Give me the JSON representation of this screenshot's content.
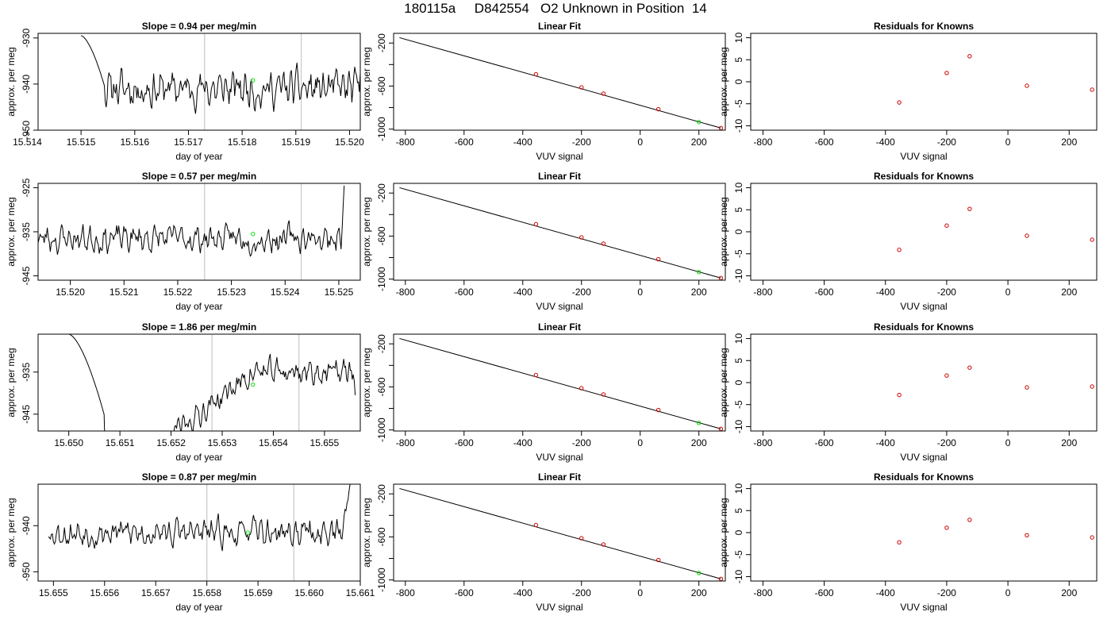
{
  "title": "180115a     D842554   O2 Unknown in Position  14",
  "colors": {
    "trace": "#000000",
    "known_point": "#cc0000",
    "unknown_point": "#00e000",
    "marker_line": "#c8c8c8"
  },
  "chart_data": [
    {
      "type": "line",
      "title": "Slope =  0.94  per meg/min",
      "xlabel": "day of year",
      "ylabel": "approx. per meg",
      "xlim": [
        15.5142,
        15.5202
      ],
      "ylim": [
        -950,
        -929
      ],
      "xticks": [
        "15.514",
        "15.515",
        "15.516",
        "15.517",
        "15.518",
        "15.519",
        "15.520"
      ],
      "xtick_values": [
        15.514,
        15.515,
        15.516,
        15.517,
        15.518,
        15.519,
        15.52
      ],
      "yticks": [
        "-950",
        "-940",
        "-930"
      ],
      "ytick_values": [
        -950,
        -940,
        -930
      ],
      "vlines": [
        15.5173,
        15.5191
      ],
      "unknown_point": {
        "x": 15.5182,
        "y": -939.2
      },
      "series": [
        {
          "x_start": 15.515,
          "x_end": 15.5202,
          "y_start": -929.5,
          "y_end": -937.5,
          "drop_x": 15.51545,
          "baseline_level": -941.0,
          "noise": 3.5,
          "seed": 11
        }
      ]
    },
    {
      "type": "scatter",
      "title": "Linear Fit",
      "xlabel": "VUV signal",
      "ylabel": "approx. per meg",
      "xlim": [
        -840,
        290
      ],
      "ylim": [
        -1010,
        -110
      ],
      "xticks": [
        "-800",
        "-600",
        "-400",
        "-200",
        "0",
        "200"
      ],
      "xtick_values": [
        -800,
        -600,
        -400,
        -200,
        0,
        200
      ],
      "yticks": [
        "-200",
        "-600",
        "-1000"
      ],
      "ytick_values": [
        -200,
        -600,
        -1000
      ],
      "yminor_ticks": [
        -400,
        -800
      ],
      "fit_line": {
        "x": [
          -820,
          275
        ],
        "y": [
          -150,
          -990
        ]
      },
      "known_points": {
        "x": [
          -355,
          -200,
          -125,
          62,
          275
        ],
        "y": [
          -490,
          -612,
          -670,
          -815,
          -990
        ]
      },
      "unknown_point": {
        "x": 200,
        "y": -935
      }
    },
    {
      "type": "scatter",
      "title": "Residuals for Knowns",
      "xlabel": "VUV signal",
      "ylabel": "approx. per meg",
      "xlim": [
        -840,
        290
      ],
      "ylim": [
        -11,
        11
      ],
      "xticks": [
        "-800",
        "-600",
        "-400",
        "-200",
        "0",
        "200"
      ],
      "xtick_values": [
        -800,
        -600,
        -400,
        -200,
        0,
        200
      ],
      "yticks": [
        "-10",
        "-5",
        "0",
        "5",
        "10"
      ],
      "ytick_values": [
        -10,
        -5,
        0,
        5,
        10
      ],
      "points": {
        "x": [
          -355,
          -200,
          -125,
          62,
          275
        ],
        "y": [
          -4.7,
          2.0,
          5.8,
          -0.9,
          -1.8
        ]
      }
    },
    {
      "type": "line",
      "title": "Slope =  0.57  per meg/min",
      "xlabel": "day of year",
      "ylabel": "approx. per meg",
      "xlim": [
        15.5194,
        15.5254
      ],
      "ylim": [
        -946,
        -924
      ],
      "xticks": [
        "15.520",
        "15.521",
        "15.522",
        "15.523",
        "15.524",
        "15.525"
      ],
      "xtick_values": [
        15.52,
        15.521,
        15.522,
        15.523,
        15.524,
        15.525
      ],
      "yticks": [
        "-945",
        "-935",
        "-925"
      ],
      "ytick_values": [
        -945,
        -935,
        -925
      ],
      "vlines": [
        15.5225,
        15.5243
      ],
      "unknown_point": {
        "x": 15.5234,
        "y": -935.5
      },
      "series": [
        {
          "x_start": 15.5194,
          "x_end": 15.5251,
          "y_start": -937.5,
          "y_end": -924.5,
          "rise_x": 15.52505,
          "baseline_level": -936.5,
          "noise": 2.8,
          "seed": 23
        }
      ]
    },
    {
      "type": "scatter",
      "title": "Linear Fit",
      "xlabel": "VUV signal",
      "ylabel": "approx. per meg",
      "xlim": [
        -840,
        290
      ],
      "ylim": [
        -1010,
        -110
      ],
      "xticks": [
        "-800",
        "-600",
        "-400",
        "-200",
        "0",
        "200"
      ],
      "xtick_values": [
        -800,
        -600,
        -400,
        -200,
        0,
        200
      ],
      "yticks": [
        "-200",
        "-600",
        "-1000"
      ],
      "ytick_values": [
        -200,
        -600,
        -1000
      ],
      "yminor_ticks": [
        -400,
        -800
      ],
      "fit_line": {
        "x": [
          -820,
          275
        ],
        "y": [
          -150,
          -990
        ]
      },
      "known_points": {
        "x": [
          -355,
          -200,
          -125,
          62,
          275
        ],
        "y": [
          -490,
          -612,
          -670,
          -815,
          -990
        ]
      },
      "unknown_point": {
        "x": 200,
        "y": -935
      }
    },
    {
      "type": "scatter",
      "title": "Residuals for Knowns",
      "xlabel": "VUV signal",
      "ylabel": "approx. per meg",
      "xlim": [
        -840,
        290
      ],
      "ylim": [
        -11,
        11
      ],
      "xticks": [
        "-800",
        "-600",
        "-400",
        "-200",
        "0",
        "200"
      ],
      "xtick_values": [
        -800,
        -600,
        -400,
        -200,
        0,
        200
      ],
      "yticks": [
        "-10",
        "-5",
        "0",
        "5",
        "10"
      ],
      "ytick_values": [
        -10,
        -5,
        0,
        5,
        10
      ],
      "points": {
        "x": [
          -355,
          -200,
          -125,
          62,
          275
        ],
        "y": [
          -4.1,
          1.4,
          5.2,
          -0.9,
          -1.8
        ]
      }
    },
    {
      "type": "line",
      "title": "Slope =  1.86  per meg/min",
      "xlabel": "day of year",
      "ylabel": "approx. per meg",
      "xlim": [
        15.6494,
        15.6557
      ],
      "ylim": [
        -949,
        -926
      ],
      "xticks": [
        "15.650",
        "15.651",
        "15.652",
        "15.653",
        "15.654",
        "15.655"
      ],
      "xtick_values": [
        15.65,
        15.651,
        15.652,
        15.653,
        15.654,
        15.655
      ],
      "yticks": [
        "-945",
        "-935"
      ],
      "ytick_values": [
        -945,
        -935
      ],
      "vlines": [
        15.6528,
        15.6545
      ],
      "unknown_point": {
        "x": 15.6536,
        "y": -938.0
      },
      "series": [
        {
          "x_start": 15.65,
          "x_end": 15.6556,
          "y_start": -926,
          "y_end": -940.5,
          "drop_x": 15.6507,
          "hidden_until": 15.652,
          "baseline_level": -945.5,
          "rise_to": -935.0,
          "noise": 2.6,
          "seed": 37
        }
      ]
    },
    {
      "type": "scatter",
      "title": "Linear Fit",
      "xlabel": "VUV signal",
      "ylabel": "approx. per meg",
      "xlim": [
        -840,
        290
      ],
      "ylim": [
        -1010,
        -110
      ],
      "xticks": [
        "-800",
        "-600",
        "-400",
        "-200",
        "0",
        "200"
      ],
      "xtick_values": [
        -800,
        -600,
        -400,
        -200,
        0,
        200
      ],
      "yticks": [
        "-200",
        "-600",
        "-1000"
      ],
      "ytick_values": [
        -200,
        -600,
        -1000
      ],
      "yminor_ticks": [
        -400,
        -800
      ],
      "fit_line": {
        "x": [
          -820,
          275
        ],
        "y": [
          -150,
          -990
        ]
      },
      "known_points": {
        "x": [
          -355,
          -200,
          -125,
          62,
          275
        ],
        "y": [
          -490,
          -612,
          -670,
          -815,
          -990
        ]
      },
      "unknown_point": {
        "x": 200,
        "y": -935
      }
    },
    {
      "type": "scatter",
      "title": "Residuals for Knowns",
      "xlabel": "VUV signal",
      "ylabel": "approx. per meg",
      "xlim": [
        -840,
        290
      ],
      "ylim": [
        -11,
        11
      ],
      "xticks": [
        "-800",
        "-600",
        "-400",
        "-200",
        "0",
        "200"
      ],
      "xtick_values": [
        -800,
        -600,
        -400,
        -200,
        0,
        200
      ],
      "yticks": [
        "-10",
        "-5",
        "0",
        "5",
        "10"
      ],
      "ytick_values": [
        -10,
        -5,
        0,
        5,
        10
      ],
      "points": {
        "x": [
          -355,
          -200,
          -125,
          62,
          275
        ],
        "y": [
          -2.8,
          1.6,
          3.4,
          -1.1,
          -0.9
        ]
      }
    },
    {
      "type": "line",
      "title": "Slope =  0.87  per meg/min",
      "xlabel": "day of year",
      "ylabel": "approx. per meg",
      "xlim": [
        15.6547,
        15.661
      ],
      "ylim": [
        -952,
        -931
      ],
      "xticks": [
        "15.655",
        "15.656",
        "15.657",
        "15.658",
        "15.659",
        "15.660",
        "15.661"
      ],
      "xtick_values": [
        15.655,
        15.656,
        15.657,
        15.658,
        15.659,
        15.66,
        15.661
      ],
      "yticks": [
        "-950",
        "-940"
      ],
      "ytick_values": [
        -950,
        -940
      ],
      "vlines": [
        15.658,
        15.6597
      ],
      "unknown_point": {
        "x": 15.6588,
        "y": -941.5
      },
      "series": [
        {
          "x_start": 15.6549,
          "x_end": 15.6608,
          "y_start": -933,
          "y_end": -931,
          "rise_x": 15.66065,
          "baseline_level": -941.5,
          "noise": 2.6,
          "seed": 53
        }
      ]
    },
    {
      "type": "scatter",
      "title": "Linear Fit",
      "xlabel": "VUV signal",
      "ylabel": "approx. per meg",
      "xlim": [
        -840,
        290
      ],
      "ylim": [
        -1010,
        -110
      ],
      "xticks": [
        "-800",
        "-600",
        "-400",
        "-200",
        "0",
        "200"
      ],
      "xtick_values": [
        -800,
        -600,
        -400,
        -200,
        0,
        200
      ],
      "yticks": [
        "-200",
        "-600",
        "-1000"
      ],
      "ytick_values": [
        -200,
        -600,
        -1000
      ],
      "yminor_ticks": [
        -400,
        -800
      ],
      "fit_line": {
        "x": [
          -820,
          275
        ],
        "y": [
          -150,
          -990
        ]
      },
      "known_points": {
        "x": [
          -355,
          -200,
          -125,
          62,
          275
        ],
        "y": [
          -490,
          -612,
          -670,
          -815,
          -990
        ]
      },
      "unknown_point": {
        "x": 200,
        "y": -935
      }
    },
    {
      "type": "scatter",
      "title": "Residuals for Knowns",
      "xlabel": "VUV signal",
      "ylabel": "approx. per meg",
      "xlim": [
        -840,
        290
      ],
      "ylim": [
        -11,
        11
      ],
      "xticks": [
        "-800",
        "-600",
        "-400",
        "-200",
        "0",
        "200"
      ],
      "xtick_values": [
        -800,
        -600,
        -400,
        -200,
        0,
        200
      ],
      "yticks": [
        "-10",
        "-5",
        "0",
        "5",
        "10"
      ],
      "points": {
        "x": [
          -355,
          -200,
          -125,
          62,
          275
        ],
        "y": [
          -2.2,
          1.1,
          2.9,
          -0.6,
          -1.1
        ]
      }
    }
  ]
}
